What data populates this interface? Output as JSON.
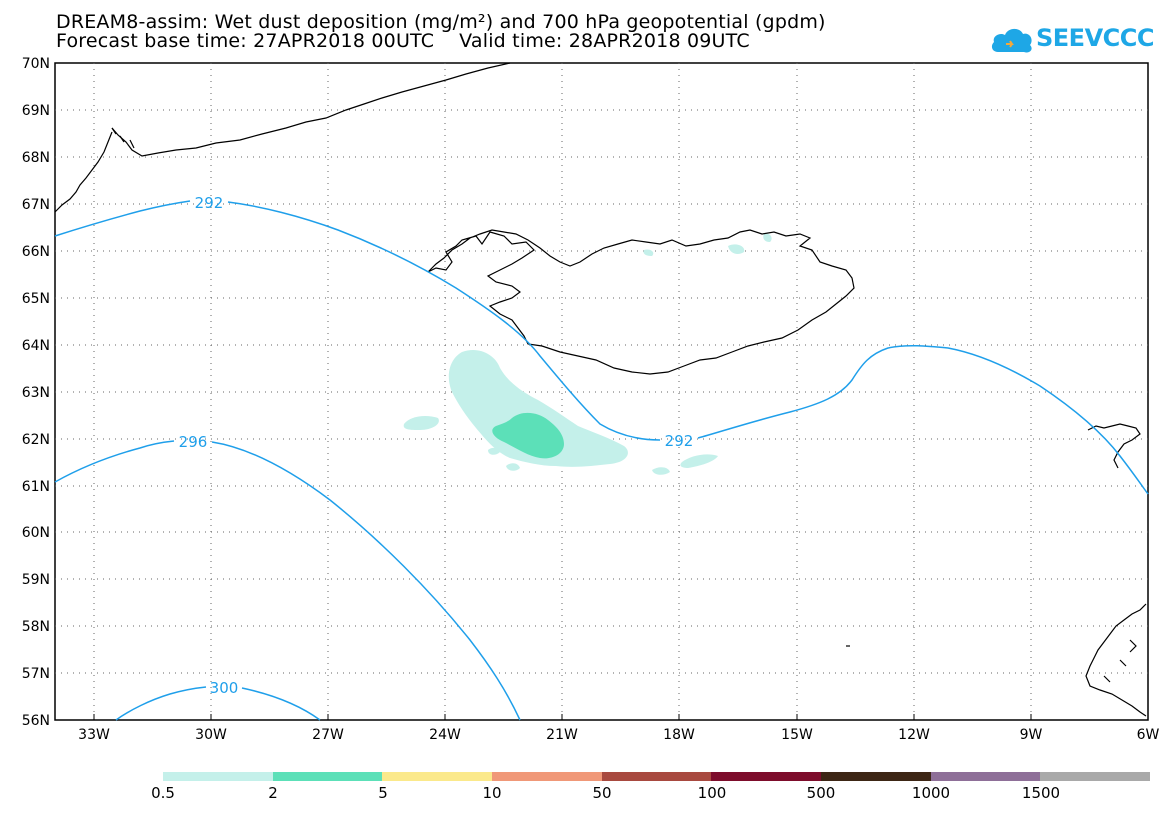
{
  "title": {
    "line1": "DREAM8-assim: Wet dust deposition (mg/m²) and 700 hPa geopotential (gpdm)",
    "line2": "Forecast base time: 27APR2018 00UTC    Valid time: 28APR2018 09UTC"
  },
  "logo": {
    "text": "SEEVCCC",
    "icon": "cloud-icon",
    "color": "#1ea7e6"
  },
  "map": {
    "projection": "lat-lon",
    "lat_range": [
      56,
      70
    ],
    "lon_range": [
      -34.2,
      -6
    ],
    "grid": "dotted",
    "lat_labels": [
      "70N",
      "69N",
      "68N",
      "67N",
      "66N",
      "65N",
      "64N",
      "63N",
      "62N",
      "61N",
      "60N",
      "59N",
      "58N",
      "57N",
      "56N"
    ],
    "lon_labels": [
      "33W",
      "30W",
      "27W",
      "24W",
      "21W",
      "18W",
      "15W",
      "12W",
      "9W",
      "6W"
    ],
    "contour_color": "#1f9fea",
    "contour_labels": [
      {
        "text": "292",
        "lon": -30.3,
        "lat": 67.1
      },
      {
        "text": "296",
        "lon": -30.6,
        "lat": 62.0
      },
      {
        "text": "300",
        "lon": -29.7,
        "lat": 56.8
      },
      {
        "text": "292",
        "lon": -17.9,
        "lat": 62.0
      }
    ]
  },
  "legend": {
    "labels": [
      "0.5",
      "2",
      "5",
      "10",
      "50",
      "100",
      "500",
      "1000",
      "1500"
    ],
    "colors": [
      "#c4f0ea",
      "#5ce0b8",
      "#fbe98b",
      "#f09878",
      "#a8493f",
      "#7d0c2b",
      "#3d2615",
      "#8e6f98",
      "#a9a9a9"
    ]
  }
}
